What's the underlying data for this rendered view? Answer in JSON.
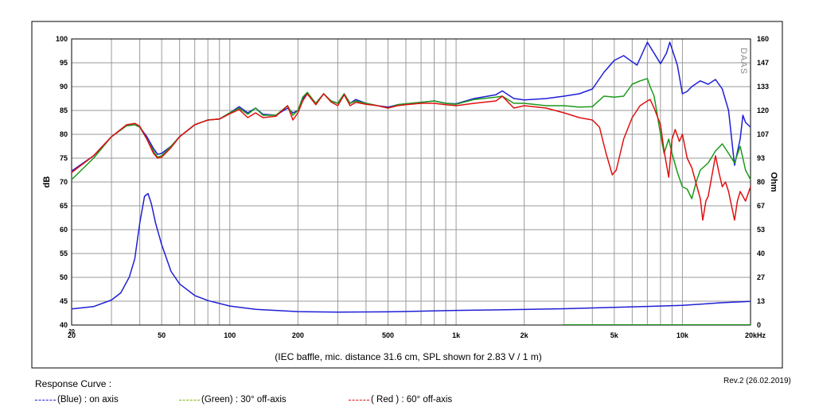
{
  "chart_data": {
    "type": "line",
    "caption": "(IEC baffle, mic. distance 31.6 cm, SPL shown for 2.83 V / 1 m)",
    "xscale": "log",
    "xlim": [
      20,
      20000
    ],
    "x_tick_labels": [
      "20",
      "50",
      "100",
      "200",
      "500",
      "1k",
      "2k",
      "5k",
      "10k",
      "20kHz"
    ],
    "ylabel": "dB",
    "ylim": [
      40,
      100
    ],
    "y_tick_labels": [
      "100",
      "95",
      "90",
      "85",
      "80",
      "75",
      "70",
      "65",
      "60",
      "55",
      "50",
      "45",
      "40"
    ],
    "y2label": "Ohm",
    "y2lim": [
      0,
      160
    ],
    "y2_tick_labels": [
      "160",
      "147",
      "133",
      "120",
      "107",
      "93",
      "80",
      "67",
      "53",
      "40",
      "27",
      "13",
      "0"
    ],
    "watermark": "DAAS",
    "grid": true,
    "series": [
      {
        "key": "blue_spl",
        "axis": "left",
        "color": "#1f1fd6",
        "points": [
          [
            20,
            72.3
          ],
          [
            25,
            75.5
          ],
          [
            30,
            79.5
          ],
          [
            35,
            81.8
          ],
          [
            38,
            82
          ],
          [
            40,
            81.5
          ],
          [
            43,
            79.5
          ],
          [
            46,
            77
          ],
          [
            48,
            75.8
          ],
          [
            50,
            76
          ],
          [
            55,
            77.5
          ],
          [
            60,
            79.5
          ],
          [
            70,
            82
          ],
          [
            80,
            83
          ],
          [
            90,
            83.2
          ],
          [
            100,
            84.5
          ],
          [
            110,
            85.8
          ],
          [
            120,
            84.5
          ],
          [
            130,
            85.5
          ],
          [
            140,
            84.2
          ],
          [
            160,
            84
          ],
          [
            180,
            85.5
          ],
          [
            190,
            84.5
          ],
          [
            200,
            85
          ],
          [
            210,
            87.5
          ],
          [
            220,
            88.5
          ],
          [
            240,
            86.5
          ],
          [
            260,
            88.5
          ],
          [
            280,
            87
          ],
          [
            300,
            86.5
          ],
          [
            320,
            88.5
          ],
          [
            340,
            86.5
          ],
          [
            360,
            87.3
          ],
          [
            400,
            86.5
          ],
          [
            450,
            86
          ],
          [
            500,
            85.7
          ],
          [
            550,
            86.2
          ],
          [
            600,
            86.4
          ],
          [
            700,
            86.7
          ],
          [
            800,
            87
          ],
          [
            900,
            86.5
          ],
          [
            1000,
            86.4
          ],
          [
            1200,
            87.5
          ],
          [
            1500,
            88.3
          ],
          [
            1600,
            89.1
          ],
          [
            1800,
            87.5
          ],
          [
            2000,
            87.2
          ],
          [
            2500,
            87.5
          ],
          [
            3000,
            88
          ],
          [
            3500,
            88.5
          ],
          [
            4000,
            89.5
          ],
          [
            4500,
            93
          ],
          [
            5000,
            95.5
          ],
          [
            5500,
            96.5
          ],
          [
            6000,
            95.2
          ],
          [
            6300,
            94.5
          ],
          [
            6800,
            98
          ],
          [
            7000,
            99.3
          ],
          [
            7500,
            97
          ],
          [
            8000,
            94.8
          ],
          [
            8500,
            97
          ],
          [
            8800,
            99.3
          ],
          [
            9500,
            94.5
          ],
          [
            10000,
            88.5
          ],
          [
            10500,
            89
          ],
          [
            11000,
            90
          ],
          [
            12000,
            91.2
          ],
          [
            13000,
            90.5
          ],
          [
            14000,
            91.5
          ],
          [
            15000,
            89.5
          ],
          [
            16000,
            85
          ],
          [
            17000,
            73.5
          ],
          [
            18000,
            79
          ],
          [
            18500,
            84
          ],
          [
            19000,
            82.5
          ],
          [
            20000,
            81.5
          ]
        ]
      },
      {
        "key": "green_spl",
        "axis": "left",
        "color": "#1a9a1a",
        "points": [
          [
            20,
            70.5
          ],
          [
            25,
            75
          ],
          [
            30,
            79.5
          ],
          [
            35,
            81.8
          ],
          [
            38,
            82
          ],
          [
            40,
            81.5
          ],
          [
            43,
            79
          ],
          [
            46,
            76.5
          ],
          [
            48,
            75.2
          ],
          [
            50,
            75.5
          ],
          [
            55,
            77.5
          ],
          [
            60,
            79.5
          ],
          [
            70,
            82
          ],
          [
            80,
            83
          ],
          [
            90,
            83.2
          ],
          [
            100,
            84.5
          ],
          [
            110,
            85.5
          ],
          [
            120,
            84.2
          ],
          [
            130,
            85.5
          ],
          [
            140,
            84
          ],
          [
            160,
            84
          ],
          [
            180,
            86
          ],
          [
            190,
            84
          ],
          [
            200,
            85
          ],
          [
            210,
            87.8
          ],
          [
            220,
            88.8
          ],
          [
            240,
            86.5
          ],
          [
            260,
            88.5
          ],
          [
            280,
            87
          ],
          [
            300,
            86.5
          ],
          [
            320,
            88.5
          ],
          [
            340,
            86.5
          ],
          [
            360,
            87
          ],
          [
            400,
            86.5
          ],
          [
            450,
            86
          ],
          [
            500,
            85.5
          ],
          [
            550,
            86.2
          ],
          [
            600,
            86.4
          ],
          [
            700,
            86.7
          ],
          [
            800,
            87
          ],
          [
            900,
            86.5
          ],
          [
            1000,
            86.3
          ],
          [
            1200,
            87.3
          ],
          [
            1500,
            87.8
          ],
          [
            1600,
            88
          ],
          [
            1800,
            86.5
          ],
          [
            2000,
            86.5
          ],
          [
            2500,
            86
          ],
          [
            3000,
            86
          ],
          [
            3500,
            85.7
          ],
          [
            4000,
            85.8
          ],
          [
            4500,
            88
          ],
          [
            5000,
            87.8
          ],
          [
            5500,
            88
          ],
          [
            6000,
            90.5
          ],
          [
            6500,
            91.2
          ],
          [
            7000,
            91.7
          ],
          [
            7200,
            90
          ],
          [
            7500,
            88
          ],
          [
            8000,
            80
          ],
          [
            8300,
            76
          ],
          [
            8700,
            79
          ],
          [
            9000,
            76
          ],
          [
            9500,
            72
          ],
          [
            10000,
            69
          ],
          [
            10500,
            68.5
          ],
          [
            11000,
            66.5
          ],
          [
            11500,
            70
          ],
          [
            12000,
            72.5
          ],
          [
            13000,
            74
          ],
          [
            14000,
            76.5
          ],
          [
            15000,
            78
          ],
          [
            16000,
            76
          ],
          [
            17000,
            74
          ],
          [
            18000,
            77.5
          ],
          [
            19000,
            72.5
          ],
          [
            20000,
            70.5
          ]
        ]
      },
      {
        "key": "red_spl",
        "axis": "left",
        "color": "#e01010",
        "points": [
          [
            20,
            72
          ],
          [
            25,
            75.5
          ],
          [
            30,
            79.5
          ],
          [
            35,
            82
          ],
          [
            38,
            82.3
          ],
          [
            40,
            81.7
          ],
          [
            43,
            79
          ],
          [
            46,
            76
          ],
          [
            48,
            75
          ],
          [
            50,
            75.2
          ],
          [
            55,
            77.2
          ],
          [
            60,
            79.5
          ],
          [
            70,
            82
          ],
          [
            80,
            83
          ],
          [
            90,
            83.2
          ],
          [
            100,
            84.3
          ],
          [
            110,
            85.2
          ],
          [
            120,
            83.5
          ],
          [
            130,
            84.5
          ],
          [
            140,
            83.5
          ],
          [
            160,
            83.8
          ],
          [
            180,
            86
          ],
          [
            190,
            83
          ],
          [
            200,
            84.5
          ],
          [
            210,
            87
          ],
          [
            220,
            88.5
          ],
          [
            240,
            86.2
          ],
          [
            260,
            88.5
          ],
          [
            280,
            86.8
          ],
          [
            300,
            86
          ],
          [
            320,
            88.3
          ],
          [
            340,
            86
          ],
          [
            360,
            86.7
          ],
          [
            400,
            86.3
          ],
          [
            450,
            86
          ],
          [
            500,
            85.5
          ],
          [
            550,
            86
          ],
          [
            600,
            86.2
          ],
          [
            700,
            86.5
          ],
          [
            800,
            86.5
          ],
          [
            900,
            86.2
          ],
          [
            1000,
            86
          ],
          [
            1200,
            86.5
          ],
          [
            1500,
            87
          ],
          [
            1600,
            88
          ],
          [
            1800,
            85.5
          ],
          [
            2000,
            86
          ],
          [
            2500,
            85.5
          ],
          [
            3000,
            84.5
          ],
          [
            3500,
            83.5
          ],
          [
            4000,
            83
          ],
          [
            4300,
            81.5
          ],
          [
            4600,
            76
          ],
          [
            4900,
            71.5
          ],
          [
            5100,
            72.5
          ],
          [
            5500,
            79
          ],
          [
            6000,
            83.5
          ],
          [
            6500,
            86
          ],
          [
            7000,
            87
          ],
          [
            7200,
            87.3
          ],
          [
            7500,
            85.5
          ],
          [
            8000,
            82
          ],
          [
            8300,
            76.5
          ],
          [
            8700,
            71
          ],
          [
            9000,
            79
          ],
          [
            9300,
            81
          ],
          [
            9700,
            78.5
          ],
          [
            10000,
            80
          ],
          [
            10500,
            75
          ],
          [
            11000,
            73
          ],
          [
            12000,
            66.5
          ],
          [
            12300,
            62
          ],
          [
            12700,
            66
          ],
          [
            13000,
            67
          ],
          [
            14000,
            75.5
          ],
          [
            14500,
            72
          ],
          [
            15000,
            69
          ],
          [
            15500,
            70
          ],
          [
            16000,
            68
          ],
          [
            17000,
            62
          ],
          [
            17500,
            66
          ],
          [
            18000,
            68
          ],
          [
            19000,
            66
          ],
          [
            20000,
            69
          ]
        ]
      },
      {
        "key": "blue_impedance",
        "axis": "right",
        "color": "#1f1fd6",
        "points": [
          [
            20,
            9
          ],
          [
            25,
            10.3
          ],
          [
            30,
            14
          ],
          [
            33,
            18
          ],
          [
            36,
            27
          ],
          [
            38,
            37
          ],
          [
            40,
            57
          ],
          [
            42,
            72
          ],
          [
            43.5,
            73.5
          ],
          [
            45,
            68
          ],
          [
            47,
            57
          ],
          [
            50,
            45
          ],
          [
            55,
            30
          ],
          [
            60,
            23
          ],
          [
            70,
            16.5
          ],
          [
            80,
            13.7
          ],
          [
            100,
            10.6
          ],
          [
            130,
            8.8
          ],
          [
            200,
            7.5
          ],
          [
            300,
            7.2
          ],
          [
            500,
            7.4
          ],
          [
            1000,
            8.2
          ],
          [
            2000,
            8.7
          ],
          [
            3000,
            9.1
          ],
          [
            5000,
            9.9
          ],
          [
            7000,
            10.4
          ],
          [
            10000,
            11
          ],
          [
            15000,
            12.5
          ],
          [
            20000,
            13.2
          ]
        ]
      }
    ]
  },
  "footer": {
    "title": "Response Curve :",
    "revision": "Rev.2 (26.02.2019)",
    "legend": [
      {
        "label": "(Blue) : on axis",
        "color": "#1f1fd6"
      },
      {
        "label": "(Green) : 30° off-axis",
        "color": "#7ab800"
      },
      {
        "label": "( Red ) : 60° off-axis",
        "color": "#e01010"
      }
    ]
  }
}
